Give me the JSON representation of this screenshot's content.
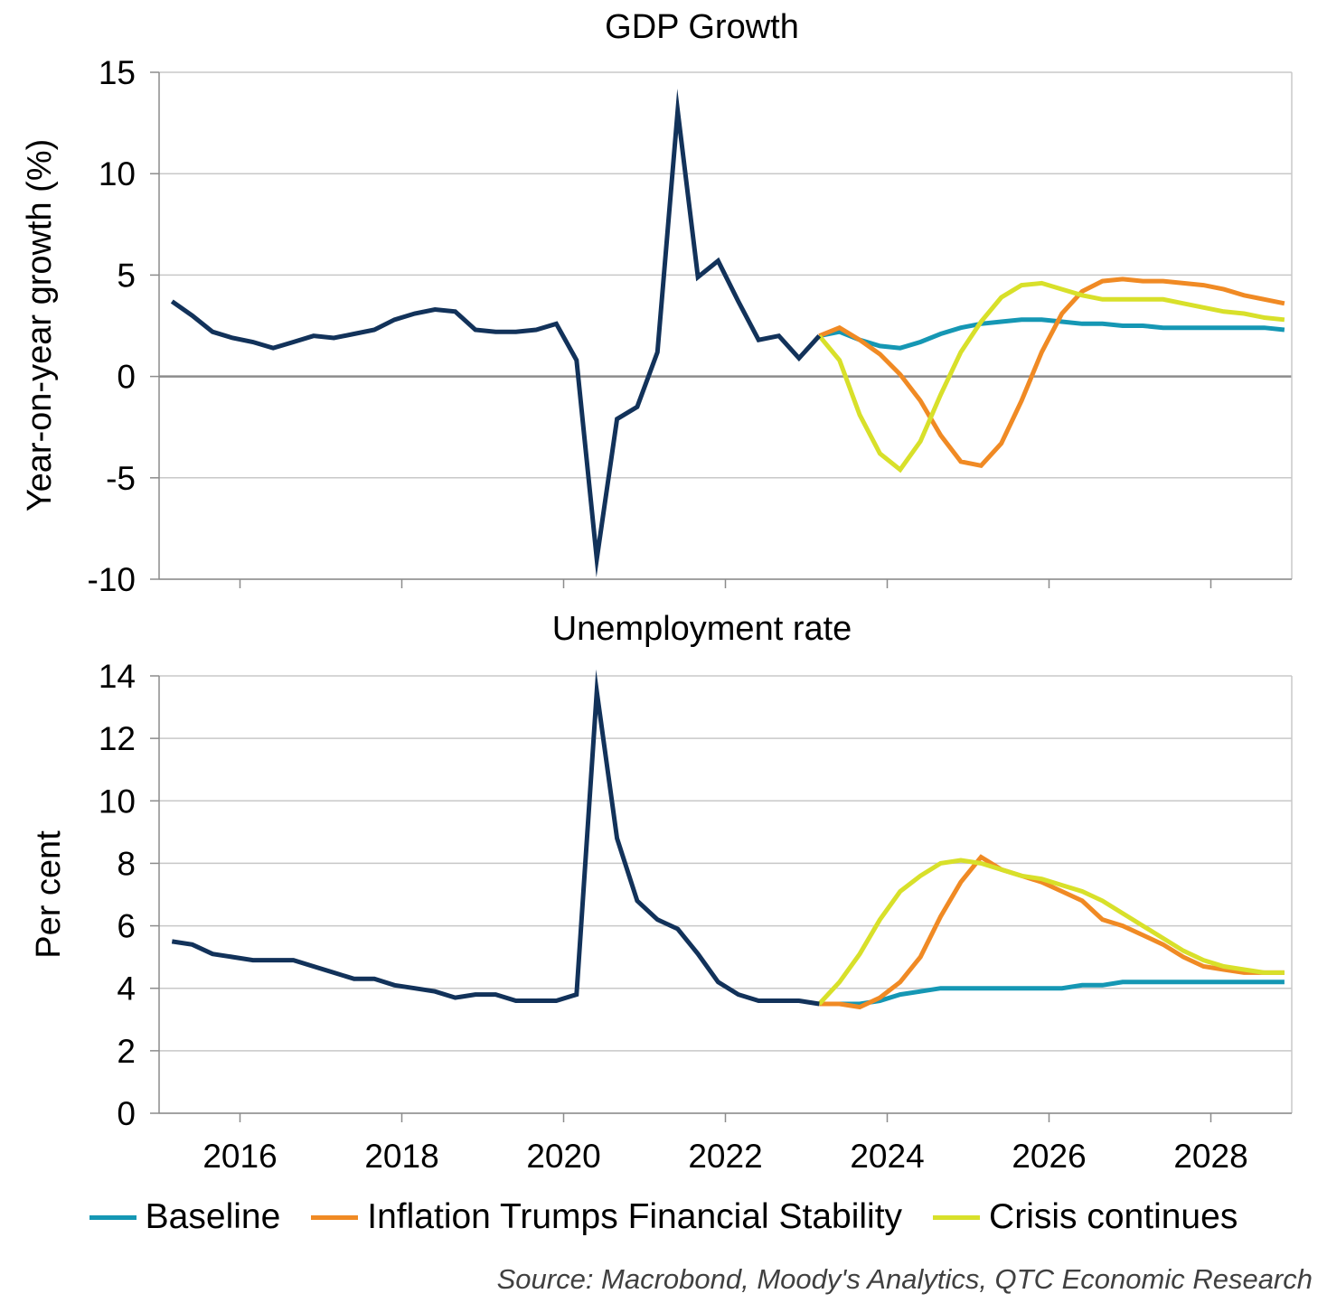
{
  "colors": {
    "history": "#12325a",
    "baseline": "#1597b4",
    "inflation": "#f08a24",
    "crisis": "#d8e02a",
    "grid": "#c8c8c8",
    "zero": "#8c8c8c"
  },
  "x_ticks": [
    "2016",
    "2018",
    "2020",
    "2022",
    "2024",
    "2026",
    "2028"
  ],
  "legend": [
    {
      "label": "Baseline",
      "key": "baseline"
    },
    {
      "label": "Inflation Trumps Financial Stability",
      "key": "inflation"
    },
    {
      "label": "Crisis continues",
      "key": "crisis"
    }
  ],
  "source": "Source: Macrobond, Moody's Analytics, QTC Economic Research",
  "chart_data": [
    {
      "type": "line",
      "title": "GDP Growth",
      "ylabel": "Year-on-year growth (%)",
      "xlabel": "",
      "xlim": [
        2015.0,
        2029.0
      ],
      "ylim": [
        -10,
        15
      ],
      "y_ticks": [
        15,
        10,
        5,
        0,
        -5,
        -10
      ],
      "grid": true,
      "legend_position": "bottom",
      "series": [
        {
          "key": "history",
          "x": [
            2015.16,
            2015.41,
            2015.66,
            2015.91,
            2016.16,
            2016.41,
            2016.66,
            2016.91,
            2017.16,
            2017.41,
            2017.66,
            2017.91,
            2018.16,
            2018.41,
            2018.66,
            2018.91,
            2019.16,
            2019.41,
            2019.66,
            2019.91,
            2020.16,
            2020.41,
            2020.66,
            2020.91,
            2021.16,
            2021.41,
            2021.66,
            2021.91,
            2022.16,
            2022.41,
            2022.66,
            2022.91,
            2023.16
          ],
          "y": [
            3.7,
            3.0,
            2.2,
            1.9,
            1.7,
            1.4,
            1.7,
            2.0,
            1.9,
            2.1,
            2.3,
            2.8,
            3.1,
            3.3,
            3.2,
            2.3,
            2.2,
            2.2,
            2.3,
            2.6,
            0.8,
            -9.0,
            -2.1,
            -1.5,
            1.2,
            13.1,
            4.9,
            5.7,
            3.7,
            1.8,
            2.0,
            0.9,
            2.0
          ]
        },
        {
          "key": "baseline",
          "x": [
            2023.16,
            2023.41,
            2023.66,
            2023.91,
            2024.16,
            2024.41,
            2024.66,
            2024.91,
            2025.16,
            2025.41,
            2025.66,
            2025.91,
            2026.16,
            2026.41,
            2026.66,
            2026.91,
            2027.16,
            2027.41,
            2027.66,
            2027.91,
            2028.16,
            2028.41,
            2028.66,
            2028.91
          ],
          "y": [
            2.0,
            2.2,
            1.8,
            1.5,
            1.4,
            1.7,
            2.1,
            2.4,
            2.6,
            2.7,
            2.8,
            2.8,
            2.7,
            2.6,
            2.6,
            2.5,
            2.5,
            2.4,
            2.4,
            2.4,
            2.4,
            2.4,
            2.4,
            2.3
          ]
        },
        {
          "key": "inflation",
          "x": [
            2023.16,
            2023.41,
            2023.66,
            2023.91,
            2024.16,
            2024.41,
            2024.66,
            2024.91,
            2025.16,
            2025.41,
            2025.66,
            2025.91,
            2026.16,
            2026.41,
            2026.66,
            2026.91,
            2027.16,
            2027.41,
            2027.66,
            2027.91,
            2028.16,
            2028.41,
            2028.66,
            2028.91
          ],
          "y": [
            2.0,
            2.4,
            1.8,
            1.1,
            0.1,
            -1.2,
            -2.9,
            -4.2,
            -4.4,
            -3.3,
            -1.2,
            1.2,
            3.1,
            4.2,
            4.7,
            4.8,
            4.7,
            4.7,
            4.6,
            4.5,
            4.3,
            4.0,
            3.8,
            3.6
          ]
        },
        {
          "key": "crisis",
          "x": [
            2023.16,
            2023.41,
            2023.66,
            2023.91,
            2024.16,
            2024.41,
            2024.66,
            2024.91,
            2025.16,
            2025.41,
            2025.66,
            2025.91,
            2026.16,
            2026.41,
            2026.66,
            2026.91,
            2027.16,
            2027.41,
            2027.66,
            2027.91,
            2028.16,
            2028.41,
            2028.66,
            2028.91
          ],
          "y": [
            2.0,
            0.8,
            -1.9,
            -3.8,
            -4.6,
            -3.2,
            -0.9,
            1.2,
            2.7,
            3.9,
            4.5,
            4.6,
            4.3,
            4.0,
            3.8,
            3.8,
            3.8,
            3.8,
            3.6,
            3.4,
            3.2,
            3.1,
            2.9,
            2.8
          ]
        }
      ]
    },
    {
      "type": "line",
      "title": "Unemployment rate",
      "ylabel": "Per cent",
      "xlabel": "",
      "xlim": [
        2015.0,
        2029.0
      ],
      "ylim": [
        0,
        14
      ],
      "y_ticks": [
        14,
        12,
        10,
        8,
        6,
        4,
        2,
        0
      ],
      "grid": true,
      "legend_position": "bottom",
      "series": [
        {
          "key": "history",
          "x": [
            2015.16,
            2015.41,
            2015.66,
            2015.91,
            2016.16,
            2016.41,
            2016.66,
            2016.91,
            2017.16,
            2017.41,
            2017.66,
            2017.91,
            2018.16,
            2018.41,
            2018.66,
            2018.91,
            2019.16,
            2019.41,
            2019.66,
            2019.91,
            2020.16,
            2020.41,
            2020.66,
            2020.91,
            2021.16,
            2021.41,
            2021.66,
            2021.91,
            2022.16,
            2022.41,
            2022.66,
            2022.91,
            2023.16
          ],
          "y": [
            5.5,
            5.4,
            5.1,
            5.0,
            4.9,
            4.9,
            4.9,
            4.7,
            4.5,
            4.3,
            4.3,
            4.1,
            4.0,
            3.9,
            3.7,
            3.8,
            3.8,
            3.6,
            3.6,
            3.6,
            3.8,
            13.5,
            8.8,
            6.8,
            6.2,
            5.9,
            5.1,
            4.2,
            3.8,
            3.6,
            3.6,
            3.6,
            3.5
          ]
        },
        {
          "key": "baseline",
          "x": [
            2023.16,
            2023.41,
            2023.66,
            2023.91,
            2024.16,
            2024.41,
            2024.66,
            2024.91,
            2025.16,
            2025.41,
            2025.66,
            2025.91,
            2026.16,
            2026.41,
            2026.66,
            2026.91,
            2027.16,
            2027.41,
            2027.66,
            2027.91,
            2028.16,
            2028.41,
            2028.66,
            2028.91
          ],
          "y": [
            3.5,
            3.5,
            3.5,
            3.6,
            3.8,
            3.9,
            4.0,
            4.0,
            4.0,
            4.0,
            4.0,
            4.0,
            4.0,
            4.1,
            4.1,
            4.2,
            4.2,
            4.2,
            4.2,
            4.2,
            4.2,
            4.2,
            4.2,
            4.2
          ]
        },
        {
          "key": "inflation",
          "x": [
            2023.16,
            2023.41,
            2023.66,
            2023.91,
            2024.16,
            2024.41,
            2024.66,
            2024.91,
            2025.16,
            2025.41,
            2025.66,
            2025.91,
            2026.16,
            2026.41,
            2026.66,
            2026.91,
            2027.16,
            2027.41,
            2027.66,
            2027.91,
            2028.16,
            2028.41,
            2028.66,
            2028.91
          ],
          "y": [
            3.5,
            3.5,
            3.4,
            3.7,
            4.2,
            5.0,
            6.3,
            7.4,
            8.2,
            7.8,
            7.6,
            7.4,
            7.1,
            6.8,
            6.2,
            6.0,
            5.7,
            5.4,
            5.0,
            4.7,
            4.6,
            4.5,
            4.5,
            4.5
          ]
        },
        {
          "key": "crisis",
          "x": [
            2023.16,
            2023.41,
            2023.66,
            2023.91,
            2024.16,
            2024.41,
            2024.66,
            2024.91,
            2025.16,
            2025.41,
            2025.66,
            2025.91,
            2026.16,
            2026.41,
            2026.66,
            2026.91,
            2027.16,
            2027.41,
            2027.66,
            2027.91,
            2028.16,
            2028.41,
            2028.66,
            2028.91
          ],
          "y": [
            3.5,
            4.2,
            5.1,
            6.2,
            7.1,
            7.6,
            8.0,
            8.1,
            8.0,
            7.8,
            7.6,
            7.5,
            7.3,
            7.1,
            6.8,
            6.4,
            6.0,
            5.6,
            5.2,
            4.9,
            4.7,
            4.6,
            4.5,
            4.5
          ]
        }
      ]
    }
  ]
}
